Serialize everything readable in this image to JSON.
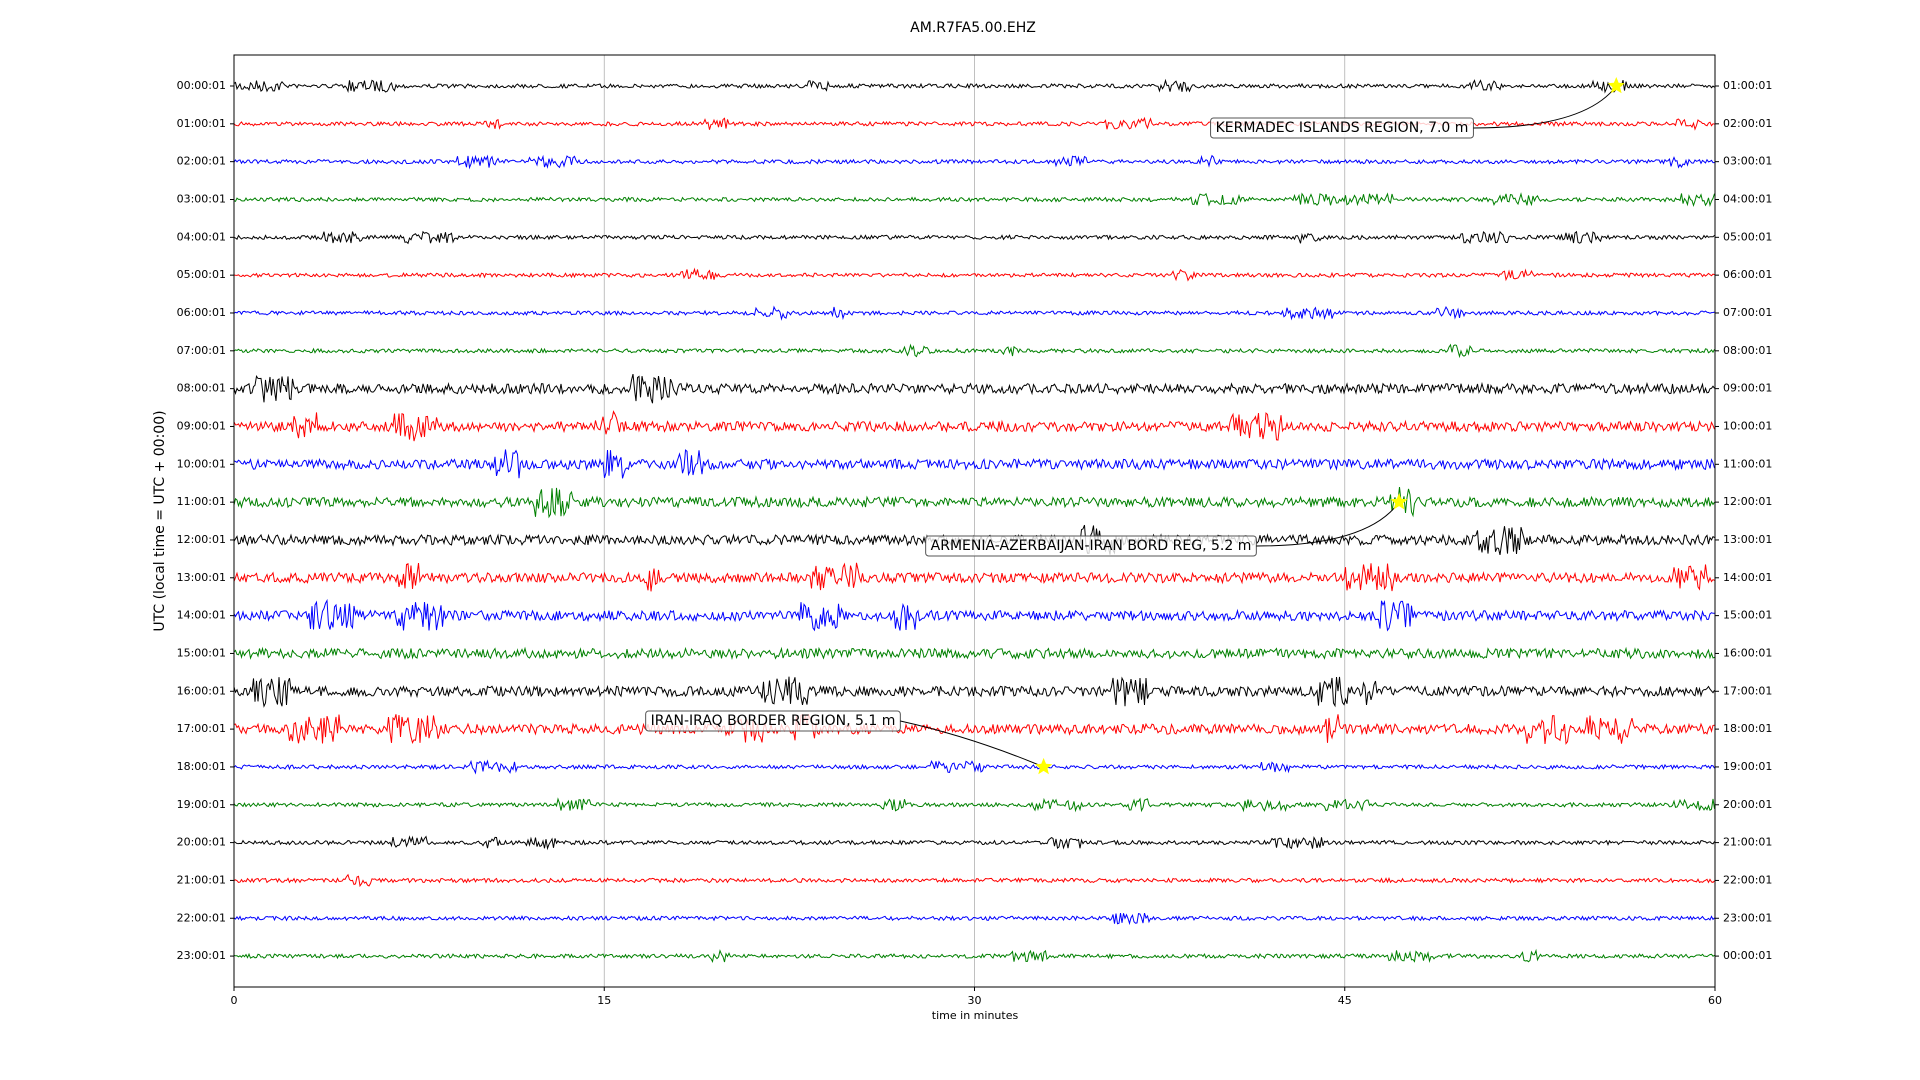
{
  "chart_data": {
    "type": "dayplot",
    "title": "AM.R7FA5.00.EHZ",
    "xlabel": "time in minutes",
    "ylabel": "UTC (local time = UTC + 00:00)",
    "xlim": [
      0,
      60
    ],
    "xticks": [
      0,
      15,
      30,
      45,
      60
    ],
    "grid": true,
    "colors": [
      "#000000",
      "#ff0000",
      "#0000ff",
      "#008000"
    ],
    "rows": [
      "00:00:01",
      "01:00:01",
      "02:00:01",
      "03:00:01",
      "04:00:01",
      "05:00:01",
      "06:00:01",
      "07:00:01",
      "08:00:01",
      "09:00:01",
      "10:00:01",
      "11:00:01",
      "12:00:01",
      "13:00:01",
      "14:00:01",
      "15:00:01",
      "16:00:01",
      "17:00:01",
      "18:00:01",
      "19:00:01",
      "20:00:01",
      "21:00:01",
      "22:00:01",
      "23:00:01"
    ],
    "rows_right": [
      "01:00:01",
      "02:00:01",
      "03:00:01",
      "04:00:01",
      "05:00:01",
      "06:00:01",
      "07:00:01",
      "08:00:01",
      "09:00:01",
      "10:00:01",
      "11:00:01",
      "12:00:01",
      "13:00:01",
      "14:00:01",
      "15:00:01",
      "16:00:01",
      "17:00:01",
      "18:00:01",
      "19:00:01",
      "20:00:01",
      "21:00:01",
      "22:00:01",
      "23:00:01",
      "00:00:01"
    ],
    "events": [
      {
        "label": "KERMADEC ISLANDS REGION, 7.0 m",
        "minute": 56.0,
        "row": 0
      },
      {
        "label": "ARMENIA-AZERBAIJAN-IRAN BORD REG, 5.2 m",
        "minute": 47.2,
        "row": 11
      },
      {
        "label": "IRAN-IRAQ BORDER REGION, 5.1 m",
        "minute": 32.8,
        "row": 18
      }
    ]
  }
}
